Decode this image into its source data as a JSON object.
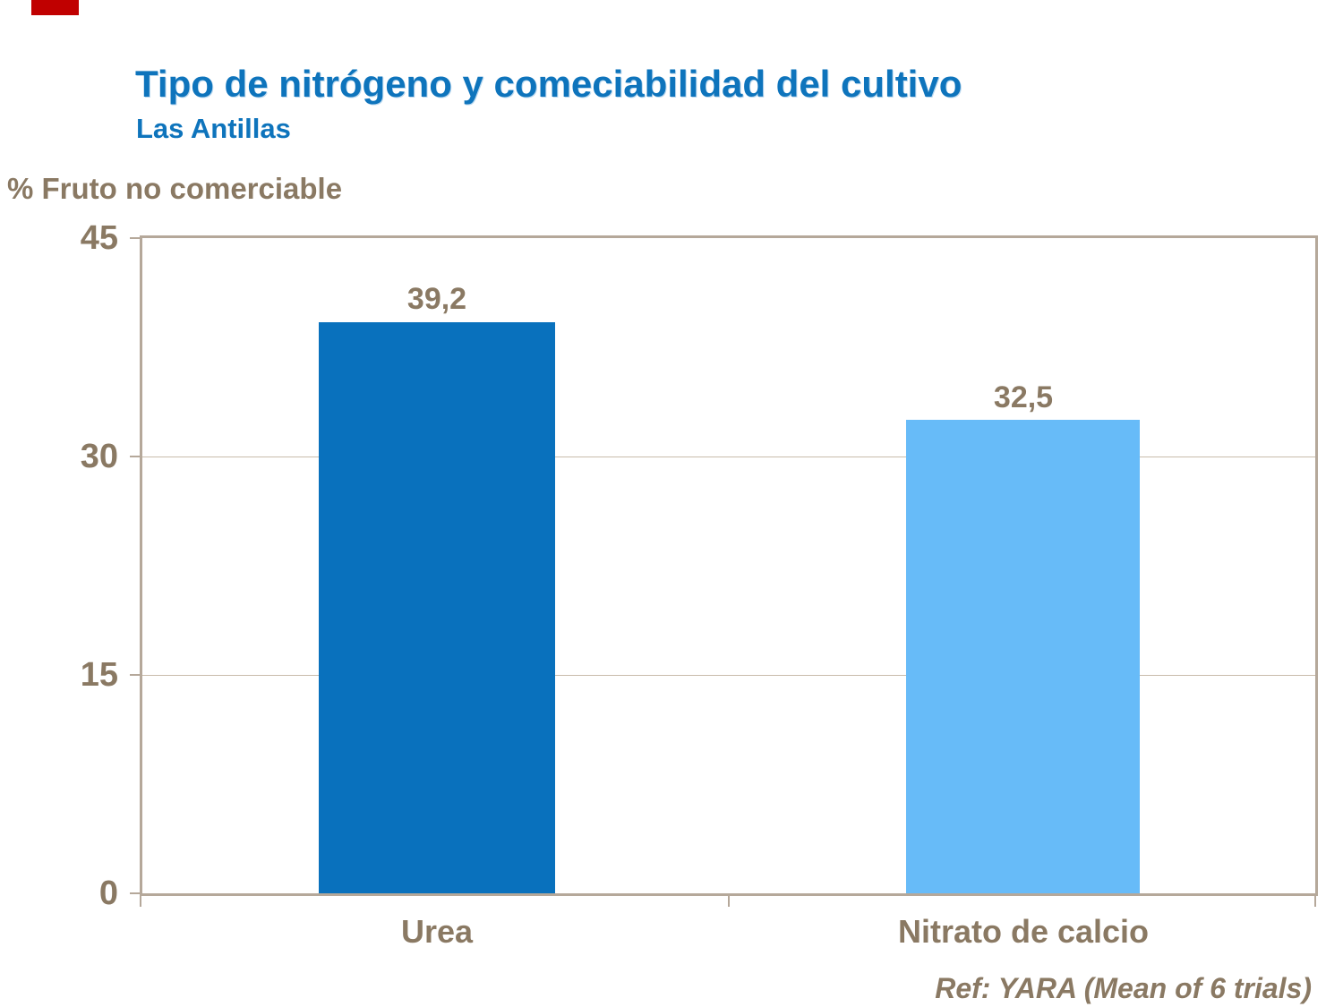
{
  "header": {
    "title": "Tipo de nitrógeno y comeciabilidad del cultivo",
    "subtitle": "Las Antillas"
  },
  "footer": {
    "reference": "Ref: YARA (Mean of 6 trials)"
  },
  "colors": {
    "title_blue": "#0e74bc",
    "text_brown": "#8a7963",
    "axis_frame_tan": "#b5a89a",
    "gridline_tan": "#c8bcab",
    "bar_urea_dark_blue": "#0971bd",
    "bar_nitrato_light_blue": "#67bbf8",
    "corner_marker_red": "#c00000"
  },
  "chart_data": {
    "type": "bar",
    "title": "Tipo de nitrógeno y comeciabilidad del cultivo",
    "subtitle": "Las Antillas",
    "ylabel": "% Fruto no comerciable",
    "xlabel": "",
    "categories": [
      "Urea",
      "Nitrato de calcio"
    ],
    "values": [
      39.2,
      32.5
    ],
    "value_labels": [
      "39,2",
      "32,5"
    ],
    "series_colors": [
      "#0971bd",
      "#67bbf8"
    ],
    "ylim": [
      0,
      45
    ],
    "yticks": [
      "45",
      "30",
      "15",
      "0"
    ],
    "grid": "horizontal",
    "legend": "none",
    "annotation": "Ref: YARA (Mean of 6 trials)"
  }
}
